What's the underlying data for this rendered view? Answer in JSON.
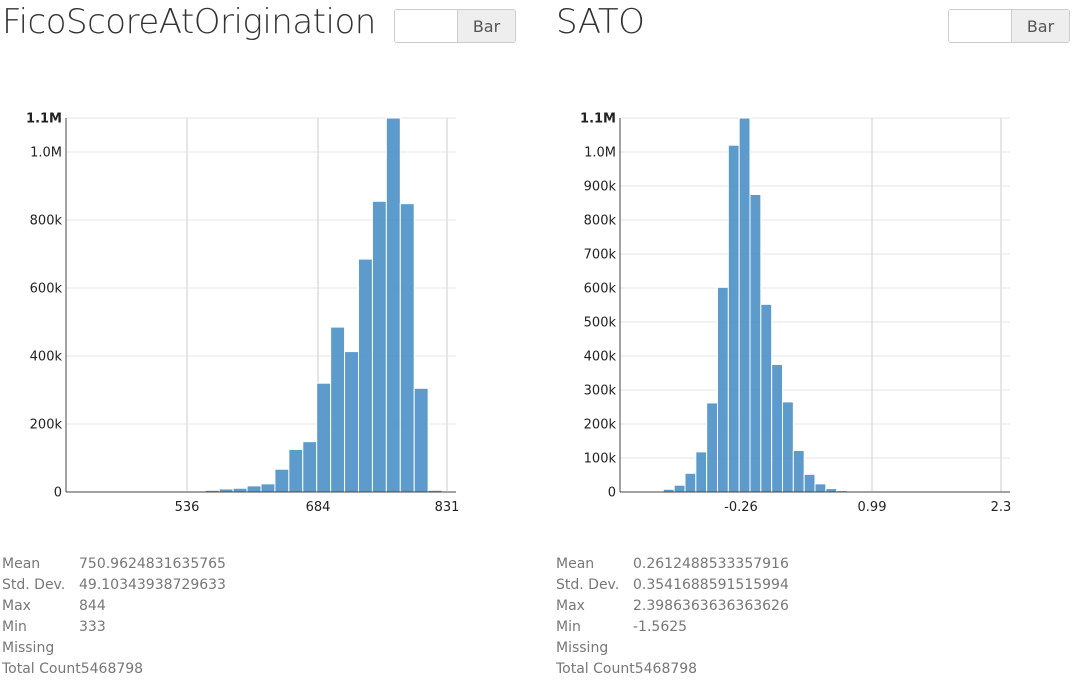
{
  "toggle_label": "Bar",
  "colors": {
    "bar": "#4a90c6",
    "grid": "#e6e6e6"
  },
  "panels": [
    {
      "title": "FicoScoreAtOrigination",
      "stats": [
        {
          "label": "Mean",
          "value": "750.9624831635765"
        },
        {
          "label": "Std. Dev.",
          "value": "49.10343938729633"
        },
        {
          "label": "Max",
          "value": "844"
        },
        {
          "label": "Min",
          "value": "333"
        },
        {
          "label": "Missing",
          "value": ""
        },
        {
          "label": "Total Count",
          "value": "5468798"
        }
      ]
    },
    {
      "title": "SATO",
      "stats": [
        {
          "label": "Mean",
          "value": "0.2612488533357916"
        },
        {
          "label": "Std. Dev.",
          "value": "0.3541688591515994"
        },
        {
          "label": "Max",
          "value": "2.3986363636363626"
        },
        {
          "label": "Min",
          "value": "-1.5625"
        },
        {
          "label": "Missing",
          "value": ""
        },
        {
          "label": "Total Count",
          "value": "5468798"
        }
      ]
    }
  ],
  "chart_data": [
    {
      "type": "bar",
      "title": "FicoScoreAtOrigination",
      "xlim": [
        333,
        844
      ],
      "ylim": [
        0,
        1100000
      ],
      "bin_start": 333,
      "bin_width": 18.25,
      "x_ticks": [
        536,
        684,
        831
      ],
      "x_tick_labels": [
        "536",
        "684",
        "831"
      ],
      "y_ticks": [
        0,
        200000,
        400000,
        600000,
        800000,
        1000000,
        1100000
      ],
      "y_tick_labels": [
        "0",
        "200k",
        "400k",
        "600k",
        "800k",
        "1.0M",
        "1.1M"
      ],
      "grid": true,
      "values": [
        3000,
        3000,
        3000,
        3000,
        3000,
        3000,
        3000,
        3000,
        3000,
        3000,
        5000,
        9000,
        11000,
        18000,
        24000,
        67000,
        125000,
        148000,
        320000,
        485000,
        413000,
        685000,
        855000,
        1100000,
        848000,
        305000,
        5000,
        2000
      ]
    },
    {
      "type": "bar",
      "title": "SATO",
      "xlim": [
        -1.5625,
        2.3986
      ],
      "ylim": [
        0,
        1100000
      ],
      "bin_start": -1.5625,
      "bin_width": 0.1098,
      "x_ticks": [
        -0.26,
        0.99,
        2.3
      ],
      "x_tick_labels": [
        "-0.26",
        "0.99",
        "2.3"
      ],
      "y_ticks": [
        0,
        100000,
        200000,
        300000,
        400000,
        500000,
        600000,
        700000,
        800000,
        900000,
        1000000,
        1100000
      ],
      "y_tick_labels": [
        "0",
        "100k",
        "200k",
        "300k",
        "400k",
        "500k",
        "600k",
        "700k",
        "800k",
        "900k",
        "1.0M",
        "1.1M"
      ],
      "grid": true,
      "values": [
        1000,
        1000,
        1000,
        1000,
        8000,
        20000,
        55000,
        118000,
        262000,
        602000,
        1020000,
        1100000,
        875000,
        552000,
        375000,
        265000,
        122000,
        52000,
        24000,
        10000,
        4000,
        2000,
        1000,
        1000,
        1000,
        1000,
        1000,
        1000,
        1000,
        1000,
        1000,
        1000,
        1000,
        1000,
        1000,
        1000
      ]
    }
  ]
}
